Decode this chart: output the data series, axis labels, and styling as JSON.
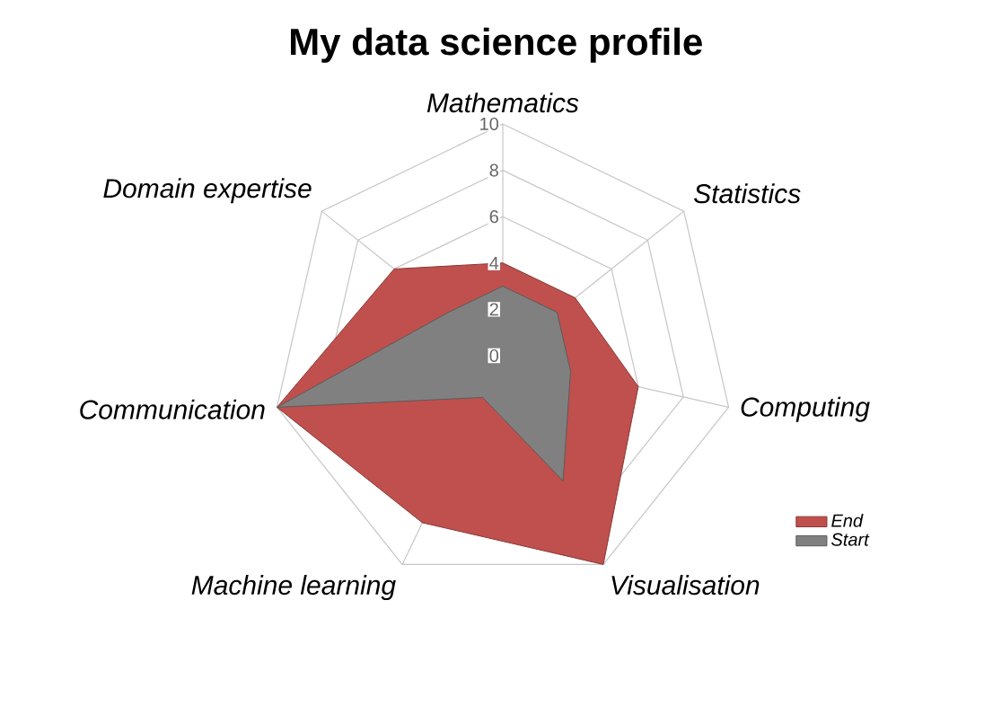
{
  "chart_data": {
    "type": "radar",
    "title": "My data science profile",
    "categories": [
      "Mathematics",
      "Statistics",
      "Computing",
      "Visualisation",
      "Machine learning",
      "Communication",
      "Domain expertise"
    ],
    "series": [
      {
        "name": "End",
        "color": "#c0504d",
        "values": [
          4,
          4,
          6,
          10,
          8,
          10,
          6
        ]
      },
      {
        "name": "Start",
        "color": "#808080",
        "values": [
          3,
          3,
          3,
          6,
          2,
          10,
          3
        ]
      }
    ],
    "ylim": [
      0,
      10
    ],
    "yticks": [
      0,
      2,
      4,
      6,
      8,
      10
    ],
    "grid": true,
    "legend": "right",
    "marker": "none"
  }
}
